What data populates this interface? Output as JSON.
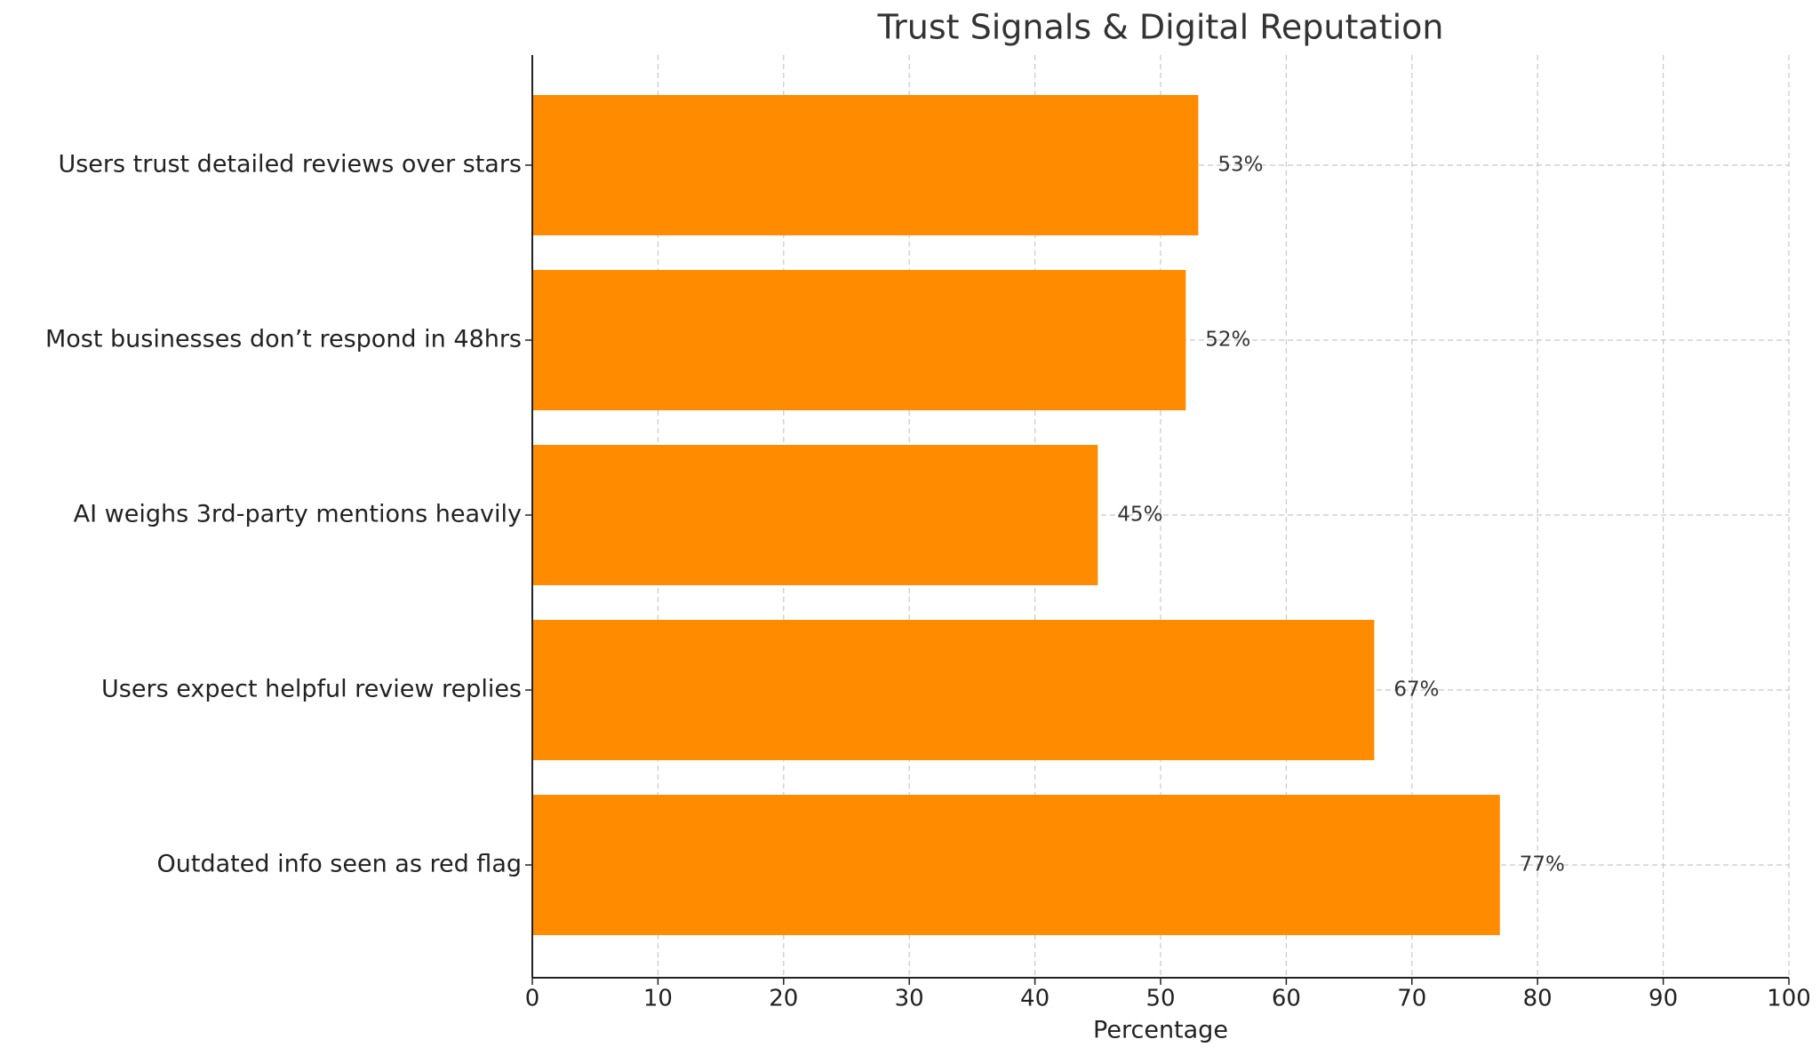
{
  "chart_data": {
    "type": "barh",
    "title": "Trust Signals & Digital Reputation",
    "x_label": "Percentage",
    "categories": [
      "Users trust detailed reviews over stars",
      "Most businesses don’t respond in 48hrs",
      "AI weighs 3rd-party mentions heavily",
      "Users expect helpful review replies",
      "Outdated info seen as red flag"
    ],
    "values": [
      53,
      52,
      45,
      67,
      77
    ],
    "value_labels": [
      "53%",
      "52%",
      "45%",
      "67%",
      "77%"
    ],
    "color": "#ff8c00",
    "xlim": [
      0,
      100
    ],
    "xticks": [
      0,
      10,
      20,
      30,
      40,
      50,
      60,
      70,
      80,
      90,
      100
    ],
    "grid": true
  }
}
